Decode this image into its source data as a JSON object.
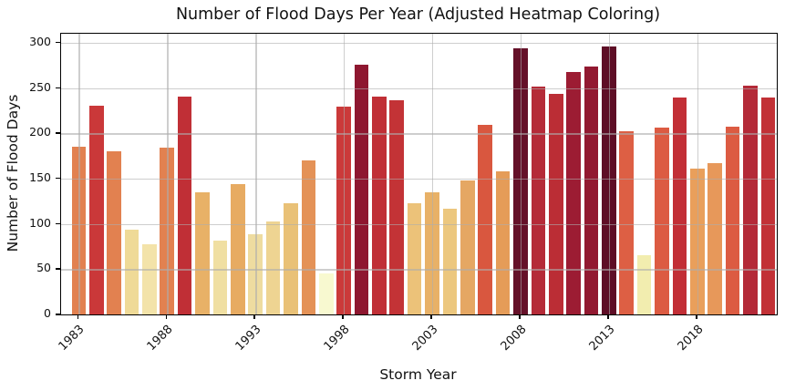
{
  "chart_data": {
    "type": "bar",
    "title": "Number of Flood Days Per Year (Adjusted Heatmap Coloring)",
    "xlabel": "Storm Year",
    "ylabel": "Number of Flood Days",
    "x": [
      1983,
      1984,
      1985,
      1986,
      1987,
      1988,
      1989,
      1990,
      1991,
      1992,
      1993,
      1994,
      1995,
      1996,
      1997,
      1998,
      1999,
      2000,
      2001,
      2002,
      2003,
      2004,
      2005,
      2006,
      2007,
      2008,
      2009,
      2010,
      2011,
      2012,
      2013,
      2014,
      2015,
      2016,
      2017,
      2018,
      2019,
      2020,
      2021,
      2022
    ],
    "values": [
      185,
      231,
      180,
      94,
      78,
      184,
      241,
      135,
      82,
      144,
      89,
      103,
      123,
      170,
      45,
      229,
      276,
      241,
      237,
      123,
      135,
      117,
      148,
      209,
      158,
      294,
      252,
      244,
      268,
      274,
      296,
      202,
      65,
      206,
      240,
      161,
      167,
      207,
      253,
      240
    ],
    "bar_colors": [
      "#e28150",
      "#ca3839",
      "#e28150",
      "#efda97",
      "#f3e3a9",
      "#e28150",
      "#c02f36",
      "#e8b167",
      "#f0dfa2",
      "#e7ab62",
      "#eedca0",
      "#eed492",
      "#e9c177",
      "#e49257",
      "#f8f9d0",
      "#cb3a3a",
      "#8e1730",
      "#c02f36",
      "#c33336",
      "#ecc279",
      "#e8b167",
      "#ecc77e",
      "#e5a763",
      "#d9573f",
      "#e59c58",
      "#651129",
      "#b52b38",
      "#bb2d35",
      "#9c1c33",
      "#921931",
      "#5e0e26",
      "#dd5f44",
      "#f2edaf",
      "#dc5b42",
      "#c22f36",
      "#e99f5b",
      "#e7985a",
      "#dc5b42",
      "#b42a38",
      "#c23136"
    ],
    "xticks": [
      1983,
      1988,
      1993,
      1998,
      2003,
      2008,
      2013,
      2018
    ],
    "yticks": [
      0,
      50,
      100,
      150,
      200,
      250,
      300
    ],
    "xlim": [
      1982.0,
      2022.5
    ],
    "ylim": [
      0,
      310
    ],
    "grid": true,
    "legend": "none",
    "colors": {
      "low_value": "#f8f9d0",
      "high_value": "#5e0e26",
      "grid": "#aeaeae",
      "text": "#111111",
      "background": "#ffffff"
    }
  }
}
